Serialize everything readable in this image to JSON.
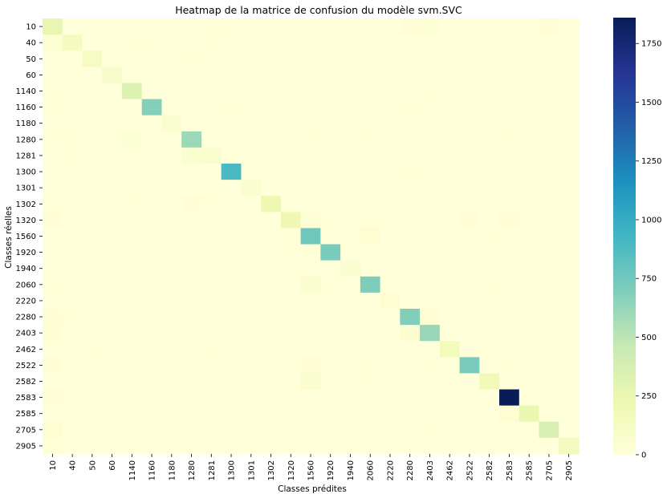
{
  "chart_data": {
    "type": "heatmap",
    "title": "Heatmap de la matrice de confusion du modèle svm.SVC",
    "xlabel": "Classes prédites",
    "ylabel": "Classes réelles",
    "categories": [
      "10",
      "40",
      "50",
      "60",
      "1140",
      "1160",
      "1180",
      "1280",
      "1281",
      "1300",
      "1301",
      "1302",
      "1320",
      "1560",
      "1920",
      "1940",
      "2060",
      "2220",
      "2280",
      "2403",
      "2462",
      "2522",
      "2582",
      "2583",
      "2585",
      "2705",
      "2905"
    ],
    "colorbar": {
      "ticks": [
        0,
        250,
        500,
        750,
        1000,
        1250,
        1500,
        1750
      ],
      "min": 0,
      "max": 1860,
      "colormap": "YlGnBu"
    },
    "diagonal": [
      260,
      140,
      130,
      90,
      330,
      680,
      70,
      610,
      80,
      900,
      60,
      230,
      220,
      760,
      720,
      60,
      700,
      40,
      690,
      620,
      170,
      720,
      200,
      1860,
      250,
      370,
      150
    ],
    "off_diagonal": [
      {
        "r": 0,
        "c": 18,
        "v": 25
      },
      {
        "r": 0,
        "c": 19,
        "v": 35
      },
      {
        "r": 0,
        "c": 25,
        "v": 20
      },
      {
        "r": 0,
        "c": 8,
        "v": 12
      },
      {
        "r": 0,
        "c": 9,
        "v": 10
      },
      {
        "r": 1,
        "c": 0,
        "v": 30
      },
      {
        "r": 1,
        "c": 4,
        "v": 12
      },
      {
        "r": 1,
        "c": 5,
        "v": 15
      },
      {
        "r": 1,
        "c": 8,
        "v": 10
      },
      {
        "r": 2,
        "c": 4,
        "v": 8
      },
      {
        "r": 2,
        "c": 7,
        "v": 10
      },
      {
        "r": 4,
        "c": 0,
        "v": 12
      },
      {
        "r": 4,
        "c": 7,
        "v": 15
      },
      {
        "r": 4,
        "c": 19,
        "v": 10
      },
      {
        "r": 5,
        "c": 0,
        "v": 15
      },
      {
        "r": 5,
        "c": 9,
        "v": 10
      },
      {
        "r": 5,
        "c": 18,
        "v": 12
      },
      {
        "r": 7,
        "c": 0,
        "v": 15
      },
      {
        "r": 7,
        "c": 1,
        "v": 12
      },
      {
        "r": 7,
        "c": 4,
        "v": 35
      },
      {
        "r": 7,
        "c": 13,
        "v": 12
      },
      {
        "r": 7,
        "c": 16,
        "v": 15
      },
      {
        "r": 7,
        "c": 23,
        "v": 12
      },
      {
        "r": 8,
        "c": 7,
        "v": 60
      },
      {
        "r": 8,
        "c": 1,
        "v": 10
      },
      {
        "r": 9,
        "c": 18,
        "v": 15
      },
      {
        "r": 9,
        "c": 7,
        "v": 8
      },
      {
        "r": 11,
        "c": 0,
        "v": 10
      },
      {
        "r": 11,
        "c": 7,
        "v": 25
      },
      {
        "r": 11,
        "c": 8,
        "v": 15
      },
      {
        "r": 11,
        "c": 4,
        "v": 10
      },
      {
        "r": 12,
        "c": 0,
        "v": 20
      },
      {
        "r": 12,
        "c": 13,
        "v": 25
      },
      {
        "r": 12,
        "c": 21,
        "v": 20
      },
      {
        "r": 12,
        "c": 23,
        "v": 25
      },
      {
        "r": 12,
        "c": 16,
        "v": 12
      },
      {
        "r": 12,
        "c": 14,
        "v": 10
      },
      {
        "r": 13,
        "c": 16,
        "v": 45
      },
      {
        "r": 13,
        "c": 12,
        "v": 12
      },
      {
        "r": 13,
        "c": 22,
        "v": 10
      },
      {
        "r": 14,
        "c": 13,
        "v": 15
      },
      {
        "r": 14,
        "c": 12,
        "v": 10
      },
      {
        "r": 15,
        "c": 23,
        "v": 10
      },
      {
        "r": 16,
        "c": 13,
        "v": 60
      },
      {
        "r": 16,
        "c": 14,
        "v": 15
      },
      {
        "r": 16,
        "c": 0,
        "v": 15
      },
      {
        "r": 16,
        "c": 7,
        "v": 12
      },
      {
        "r": 16,
        "c": 22,
        "v": 10
      },
      {
        "r": 18,
        "c": 0,
        "v": 25
      },
      {
        "r": 18,
        "c": 19,
        "v": 30
      },
      {
        "r": 18,
        "c": 1,
        "v": 10
      },
      {
        "r": 19,
        "c": 18,
        "v": 55
      },
      {
        "r": 19,
        "c": 0,
        "v": 30
      },
      {
        "r": 19,
        "c": 5,
        "v": 12
      },
      {
        "r": 20,
        "c": 8,
        "v": 15
      },
      {
        "r": 20,
        "c": 2,
        "v": 10
      },
      {
        "r": 21,
        "c": 0,
        "v": 25
      },
      {
        "r": 21,
        "c": 13,
        "v": 30
      },
      {
        "r": 21,
        "c": 19,
        "v": 15
      },
      {
        "r": 21,
        "c": 23,
        "v": 15
      },
      {
        "r": 21,
        "c": 16,
        "v": 12
      },
      {
        "r": 22,
        "c": 13,
        "v": 70
      },
      {
        "r": 22,
        "c": 16,
        "v": 15
      },
      {
        "r": 23,
        "c": 0,
        "v": 20
      },
      {
        "r": 23,
        "c": 5,
        "v": 12
      },
      {
        "r": 23,
        "c": 1,
        "v": 10
      },
      {
        "r": 24,
        "c": 23,
        "v": 40
      },
      {
        "r": 24,
        "c": 7,
        "v": 10
      },
      {
        "r": 25,
        "c": 0,
        "v": 40
      },
      {
        "r": 25,
        "c": 19,
        "v": 10
      },
      {
        "r": 26,
        "c": 0,
        "v": 12
      }
    ]
  }
}
